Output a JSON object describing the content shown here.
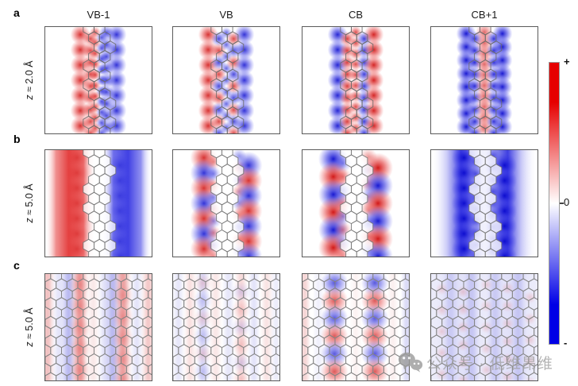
{
  "figure": {
    "columns": [
      "VB-1",
      "VB",
      "CB",
      "CB+1"
    ],
    "rows": [
      {
        "panel_label": "a",
        "z_italic": "z",
        "z_rest": " ≈ 2.0 Å"
      },
      {
        "panel_label": "b",
        "z_italic": "z",
        "z_rest": " ≈ 5.0 Å"
      },
      {
        "panel_label": "c",
        "z_italic": "z",
        "z_rest": " ≈ 5.0 Å"
      }
    ],
    "colorbar": {
      "plus": "+",
      "zero": "0",
      "minus": "-",
      "top_color": "#e60000",
      "mid_color": "#ffffff",
      "bottom_color": "#0000e6"
    },
    "watermark": {
      "icon": "wechat-icon",
      "text": "公众号 · 低维昂维",
      "color": "#a3a3a3"
    },
    "blob_colors": {
      "red": "#cc0000",
      "blue": "#0000cc"
    },
    "panels": [
      {
        "id": "a-VB-1",
        "row": "a",
        "col": "VB-1",
        "lattice": "ribbon",
        "blobs": [
          {
            "x": 0.33,
            "r": 8,
            "n": 7,
            "ph": 0,
            "op": 0.8,
            "colors": [
              "red"
            ]
          },
          {
            "x": 0.425,
            "r": 6,
            "n": 9,
            "ph": 0.5,
            "op": 0.7,
            "colors": [
              "red"
            ]
          },
          {
            "x": 0.47,
            "r": 4.5,
            "n": 10,
            "ph": 0,
            "op": 0.65,
            "colors": [
              "red"
            ]
          },
          {
            "x": 0.53,
            "r": 4.5,
            "n": 10,
            "ph": 0.5,
            "op": 0.65,
            "colors": [
              "blue"
            ]
          },
          {
            "x": 0.575,
            "r": 6,
            "n": 9,
            "ph": 0,
            "op": 0.7,
            "colors": [
              "blue"
            ]
          },
          {
            "x": 0.67,
            "r": 8,
            "n": 7,
            "ph": 0,
            "op": 0.8,
            "colors": [
              "blue"
            ]
          }
        ]
      },
      {
        "id": "a-VB",
        "row": "a",
        "col": "VB",
        "lattice": "ribbon",
        "blobs": [
          {
            "x": 0.33,
            "r": 8,
            "n": 7,
            "ph": 0,
            "op": 0.8,
            "colors": [
              "red"
            ]
          },
          {
            "x": 0.43,
            "r": 6,
            "n": 9,
            "ph": 0.5,
            "op": 0.7,
            "colors": [
              "blue",
              "red"
            ]
          },
          {
            "x": 0.5,
            "r": 4.5,
            "n": 9,
            "ph": 0,
            "op": 0.6,
            "colors": [
              "blue"
            ]
          },
          {
            "x": 0.57,
            "r": 6,
            "n": 9,
            "ph": 0.5,
            "op": 0.7,
            "colors": [
              "red",
              "blue"
            ]
          },
          {
            "x": 0.67,
            "r": 8,
            "n": 7,
            "ph": 0,
            "op": 0.8,
            "colors": [
              "blue"
            ]
          }
        ]
      },
      {
        "id": "a-CB",
        "row": "a",
        "col": "CB",
        "lattice": "ribbon",
        "blobs": [
          {
            "x": 0.33,
            "r": 8,
            "n": 7,
            "ph": 0,
            "op": 0.85,
            "colors": [
              "blue"
            ]
          },
          {
            "x": 0.42,
            "r": 6,
            "n": 9,
            "ph": 0.5,
            "op": 0.75,
            "colors": [
              "red"
            ]
          },
          {
            "x": 0.5,
            "r": 5,
            "n": 10,
            "ph": 0,
            "op": 0.7,
            "colors": [
              "red"
            ]
          },
          {
            "x": 0.58,
            "r": 6,
            "n": 9,
            "ph": 0.5,
            "op": 0.75,
            "colors": [
              "blue"
            ]
          },
          {
            "x": 0.67,
            "r": 8,
            "n": 7,
            "ph": 0,
            "op": 0.85,
            "colors": [
              "red"
            ]
          }
        ]
      },
      {
        "id": "a-CB+1",
        "row": "a",
        "col": "CB+1",
        "lattice": "ribbon",
        "blobs": [
          {
            "x": 0.33,
            "r": 8,
            "n": 8,
            "ph": 0,
            "op": 0.9,
            "colors": [
              "blue"
            ]
          },
          {
            "x": 0.41,
            "r": 6,
            "n": 9,
            "ph": 0.5,
            "op": 0.8,
            "colors": [
              "blue"
            ]
          },
          {
            "x": 0.5,
            "r": 7,
            "n": 10,
            "ph": 0,
            "op": 0.6,
            "colors": [
              "red"
            ]
          },
          {
            "x": 0.59,
            "r": 6,
            "n": 9,
            "ph": 0.5,
            "op": 0.8,
            "colors": [
              "blue"
            ]
          },
          {
            "x": 0.67,
            "r": 8,
            "n": 8,
            "ph": 0,
            "op": 0.9,
            "colors": [
              "blue"
            ]
          }
        ]
      },
      {
        "id": "b-VB-1",
        "row": "b",
        "col": "VB-1",
        "lattice": "ribbonFill",
        "bands": [
          {
            "stops": [
              [
                0,
                "#ffffff",
                0
              ],
              [
                0.1,
                "#e02020",
                0.5
              ],
              [
                0.22,
                "#dd1111",
                0.8
              ],
              [
                0.36,
                "#e02020",
                0.65
              ],
              [
                0.48,
                "#ffffff",
                0
              ],
              [
                0.52,
                "#ffffff",
                0
              ],
              [
                0.64,
                "#2020e0",
                0.65
              ],
              [
                0.78,
                "#1111dd",
                0.8
              ],
              [
                0.9,
                "#2020e0",
                0.5
              ],
              [
                1,
                "#ffffff",
                0
              ]
            ]
          }
        ],
        "blobs": [
          {
            "x": 0.3,
            "r": 9,
            "n": 7,
            "ph": 0,
            "op": 0.35,
            "colors": [
              "red"
            ]
          },
          {
            "x": 0.7,
            "r": 9,
            "n": 7,
            "ph": 0.5,
            "op": 0.35,
            "colors": [
              "blue"
            ]
          }
        ]
      },
      {
        "id": "b-VB",
        "row": "b",
        "col": "VB",
        "lattice": "ribbonFill",
        "blobs": [
          {
            "x": 0.29,
            "r": 11,
            "n": 7,
            "ph": 0,
            "op": 0.8,
            "colors": [
              "red",
              "blue"
            ]
          },
          {
            "x": 0.38,
            "r": 6,
            "n": 9,
            "ph": 0.5,
            "op": 0.4,
            "colors": [
              "red",
              "blue"
            ]
          },
          {
            "x": 0.62,
            "r": 6,
            "n": 9,
            "ph": 0,
            "op": 0.4,
            "colors": [
              "blue",
              "red"
            ]
          },
          {
            "x": 0.71,
            "r": 11,
            "n": 7,
            "ph": 0.5,
            "op": 0.8,
            "colors": [
              "blue",
              "red"
            ]
          }
        ]
      },
      {
        "id": "b-CB",
        "row": "b",
        "col": "CB",
        "lattice": "ribbonFill",
        "blobs": [
          {
            "x": 0.29,
            "r": 12,
            "n": 6,
            "ph": 0,
            "op": 0.9,
            "colors": [
              "blue",
              "red"
            ]
          },
          {
            "x": 0.38,
            "r": 7,
            "n": 8,
            "ph": 0.5,
            "op": 0.4,
            "colors": [
              "blue",
              "red"
            ]
          },
          {
            "x": 0.62,
            "r": 7,
            "n": 8,
            "ph": 0,
            "op": 0.4,
            "colors": [
              "red",
              "blue"
            ]
          },
          {
            "x": 0.71,
            "r": 12,
            "n": 6,
            "ph": 0.5,
            "op": 0.9,
            "colors": [
              "red",
              "blue"
            ]
          }
        ]
      },
      {
        "id": "b-CB+1",
        "row": "b",
        "col": "CB+1",
        "lattice": "ribbonFill",
        "bands": [
          {
            "stops": [
              [
                0,
                "#ffffff",
                0
              ],
              [
                0.15,
                "#2a2ae0",
                0.25
              ],
              [
                0.28,
                "#0f0fd8",
                0.8
              ],
              [
                0.42,
                "#3a3ae0",
                0.5
              ],
              [
                0.5,
                "#5050e8",
                0.35
              ],
              [
                0.58,
                "#3a3ae0",
                0.5
              ],
              [
                0.72,
                "#0f0fd8",
                0.8
              ],
              [
                0.85,
                "#2a2ae0",
                0.25
              ],
              [
                1,
                "#ffffff",
                0
              ]
            ]
          }
        ],
        "blobs": [
          {
            "x": 0.31,
            "r": 10,
            "n": 7,
            "ph": 0,
            "op": 0.85,
            "colors": [
              "blue"
            ]
          },
          {
            "x": 0.69,
            "r": 10,
            "n": 7,
            "ph": 0.5,
            "op": 0.85,
            "colors": [
              "blue"
            ]
          },
          {
            "x": 0.42,
            "r": 6,
            "n": 9,
            "ph": 0.5,
            "op": 0.5,
            "colors": [
              "blue"
            ]
          },
          {
            "x": 0.58,
            "r": 6,
            "n": 9,
            "ph": 0,
            "op": 0.5,
            "colors": [
              "blue"
            ]
          }
        ]
      },
      {
        "id": "c-VB-1",
        "row": "c",
        "col": "VB-1",
        "lattice": "full",
        "stripes": [
          {
            "x": 0.02,
            "w": 9,
            "color": "red",
            "op": 0.4
          },
          {
            "x": 0.13,
            "w": 8,
            "color": "blue",
            "op": 0.18
          },
          {
            "x": 0.22,
            "w": 10,
            "color": "blue",
            "op": 0.42
          },
          {
            "x": 0.325,
            "w": 11,
            "color": "red",
            "op": 0.6
          },
          {
            "x": 0.45,
            "w": 8,
            "color": "red",
            "op": 0.15
          },
          {
            "x": 0.56,
            "w": 8,
            "color": "blue",
            "op": 0.2
          },
          {
            "x": 0.635,
            "w": 10,
            "color": "blue",
            "op": 0.42
          },
          {
            "x": 0.73,
            "w": 11,
            "color": "red",
            "op": 0.55
          },
          {
            "x": 0.86,
            "w": 8,
            "color": "blue",
            "op": 0.18
          },
          {
            "x": 0.97,
            "w": 9,
            "color": "red",
            "op": 0.35
          }
        ],
        "blobs": [
          {
            "x": 0.325,
            "r": 9,
            "n": 5,
            "ph": 0,
            "op": 0.25,
            "colors": [
              "red"
            ]
          },
          {
            "x": 0.73,
            "r": 9,
            "n": 5,
            "ph": 0.5,
            "op": 0.25,
            "colors": [
              "red"
            ]
          }
        ]
      },
      {
        "id": "c-VB",
        "row": "c",
        "col": "VB",
        "lattice": "full",
        "stripes": [
          {
            "x": 0.05,
            "w": 7,
            "color": "blue",
            "op": 0.18
          },
          {
            "x": 0.16,
            "w": 7,
            "color": "red",
            "op": 0.22
          },
          {
            "x": 0.28,
            "w": 8,
            "color": "blue",
            "op": 0.25
          },
          {
            "x": 0.4,
            "w": 7,
            "color": "red",
            "op": 0.18
          },
          {
            "x": 0.52,
            "w": 7,
            "color": "blue",
            "op": 0.18
          },
          {
            "x": 0.64,
            "w": 8,
            "color": "red",
            "op": 0.25
          },
          {
            "x": 0.76,
            "w": 7,
            "color": "blue",
            "op": 0.2
          },
          {
            "x": 0.88,
            "w": 7,
            "color": "red",
            "op": 0.2
          },
          {
            "x": 0.97,
            "w": 6,
            "color": "blue",
            "op": 0.15
          }
        ],
        "blobs": [
          {
            "x": 0.28,
            "r": 8,
            "n": 6,
            "ph": 0,
            "op": 0.2,
            "colors": [
              "red",
              "blue"
            ]
          },
          {
            "x": 0.64,
            "r": 8,
            "n": 6,
            "ph": 0.5,
            "op": 0.2,
            "colors": [
              "blue",
              "red"
            ]
          }
        ]
      },
      {
        "id": "c-CB",
        "row": "c",
        "col": "CB",
        "lattice": "full",
        "stripes": [
          {
            "x": 0.02,
            "w": 6,
            "color": "red",
            "op": 0.35
          },
          {
            "x": 0.15,
            "w": 6,
            "color": "blue",
            "op": 0.12
          },
          {
            "x": 0.5,
            "w": 6,
            "color": "red",
            "op": 0.1
          },
          {
            "x": 0.85,
            "w": 6,
            "color": "red",
            "op": 0.12
          },
          {
            "x": 0.98,
            "w": 6,
            "color": "blue",
            "op": 0.3
          }
        ],
        "blobs": [
          {
            "x": 0.3,
            "r": 11,
            "n": 6,
            "ph": 0,
            "op": 0.9,
            "colors": [
              "blue",
              "red"
            ]
          },
          {
            "x": 0.68,
            "r": 11,
            "n": 6,
            "ph": 0,
            "op": 0.9,
            "colors": [
              "blue",
              "red"
            ]
          }
        ]
      },
      {
        "id": "c-CB+1",
        "row": "c",
        "col": "CB+1",
        "lattice": "full",
        "bands": [
          {
            "stops": [
              [
                0,
                "#4040d8",
                0.13
              ],
              [
                0.25,
                "#4040d8",
                0.22
              ],
              [
                0.5,
                "#4040d8",
                0.15
              ],
              [
                0.75,
                "#4040d8",
                0.22
              ],
              [
                1,
                "#4040d8",
                0.13
              ]
            ]
          }
        ],
        "stripes": [
          {
            "x": 0.18,
            "w": 10,
            "color": "blue",
            "op": 0.18
          },
          {
            "x": 0.38,
            "w": 10,
            "color": "blue",
            "op": 0.22
          },
          {
            "x": 0.6,
            "w": 10,
            "color": "blue",
            "op": 0.2
          },
          {
            "x": 0.82,
            "w": 10,
            "color": "blue",
            "op": 0.22
          }
        ],
        "blobs": [
          {
            "x": 0.1,
            "r": 5,
            "n": 5,
            "ph": 0.2,
            "op": 0.2,
            "colors": [
              "red"
            ]
          },
          {
            "x": 0.3,
            "r": 5,
            "n": 6,
            "ph": 0.5,
            "op": 0.22,
            "colors": [
              "red"
            ]
          },
          {
            "x": 0.52,
            "r": 5,
            "n": 5,
            "ph": 0,
            "op": 0.2,
            "colors": [
              "red"
            ]
          },
          {
            "x": 0.72,
            "r": 5,
            "n": 6,
            "ph": 0.3,
            "op": 0.22,
            "colors": [
              "red"
            ]
          },
          {
            "x": 0.93,
            "r": 5,
            "n": 5,
            "ph": 0.6,
            "op": 0.2,
            "colors": [
              "red"
            ]
          }
        ]
      }
    ]
  }
}
